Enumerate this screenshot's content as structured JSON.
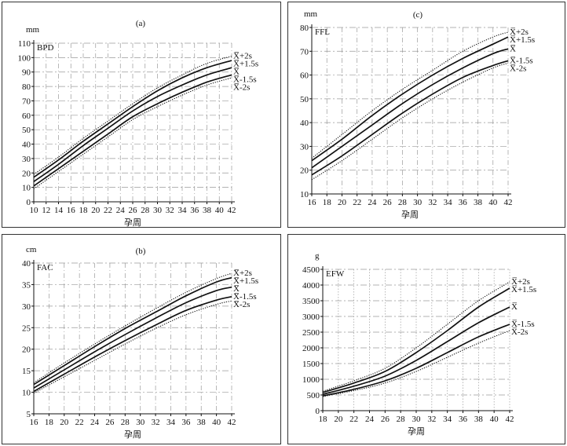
{
  "chart_data": [
    {
      "id": "a",
      "type": "line",
      "title": "(a)",
      "unit": "mm",
      "measure": "BPD",
      "xlabel": "孕周",
      "xlim": [
        10,
        42
      ],
      "ylim": [
        0,
        110
      ],
      "x_ticks": [
        10,
        12,
        14,
        16,
        18,
        20,
        22,
        24,
        26,
        28,
        30,
        32,
        34,
        36,
        38,
        40,
        42
      ],
      "y_ticks": [
        0,
        10,
        20,
        30,
        40,
        50,
        60,
        70,
        80,
        90,
        100,
        110
      ],
      "series": [
        {
          "name": "X̅+2s",
          "style": "dotted",
          "x": [
            10,
            14,
            18,
            22,
            26,
            30,
            34,
            38,
            42
          ],
          "y": [
            19,
            31,
            44,
            56,
            68,
            79,
            88,
            96,
            101
          ]
        },
        {
          "name": "X̅+1.5s",
          "style": "solid",
          "x": [
            10,
            14,
            18,
            22,
            26,
            30,
            34,
            38,
            42
          ],
          "y": [
            17,
            29,
            42,
            54,
            66,
            77,
            86,
            93,
            98
          ]
        },
        {
          "name": "X̅",
          "style": "solid",
          "x": [
            10,
            14,
            18,
            22,
            26,
            30,
            34,
            38,
            42
          ],
          "y": [
            14,
            26,
            39,
            51,
            63,
            73,
            81,
            88,
            93
          ]
        },
        {
          "name": "X̅-1.5s",
          "style": "solid",
          "x": [
            10,
            14,
            18,
            22,
            26,
            30,
            34,
            38,
            42
          ],
          "y": [
            11,
            23,
            35,
            47,
            59,
            68,
            76,
            83,
            88
          ]
        },
        {
          "name": "X̅-2s",
          "style": "dotted",
          "x": [
            10,
            14,
            18,
            22,
            26,
            30,
            34,
            38,
            42
          ],
          "y": [
            9,
            21,
            33,
            45,
            57,
            66,
            74,
            81,
            86
          ]
        }
      ]
    },
    {
      "id": "c",
      "type": "line",
      "title": "(c)",
      "unit": "mm",
      "measure": "FFL",
      "xlabel": "孕周",
      "xlim": [
        16,
        42
      ],
      "ylim": [
        10,
        80
      ],
      "x_ticks": [
        16,
        18,
        20,
        22,
        24,
        26,
        28,
        30,
        32,
        34,
        36,
        38,
        40,
        42
      ],
      "y_ticks": [
        10,
        20,
        30,
        40,
        50,
        60,
        70,
        80
      ],
      "series": [
        {
          "name": "X̅+2s",
          "style": "dotted",
          "x": [
            16,
            20,
            24,
            28,
            32,
            36,
            40,
            42
          ],
          "y": [
            25,
            35,
            45,
            54,
            62,
            70,
            76,
            78
          ]
        },
        {
          "name": "X̅+1.5s",
          "style": "solid",
          "x": [
            16,
            20,
            24,
            28,
            32,
            36,
            40,
            42
          ],
          "y": [
            24,
            33,
            43,
            52,
            60,
            67,
            73,
            76
          ]
        },
        {
          "name": "X̅",
          "style": "solid",
          "x": [
            16,
            20,
            24,
            28,
            32,
            36,
            40,
            42
          ],
          "y": [
            21,
            30,
            39,
            48,
            56,
            63,
            69,
            71
          ]
        },
        {
          "name": "X̅-1.5s",
          "style": "solid",
          "x": [
            16,
            20,
            24,
            28,
            32,
            36,
            40,
            42
          ],
          "y": [
            18,
            26,
            35,
            44,
            52,
            59,
            64,
            66
          ]
        },
        {
          "name": "X̅-2s",
          "style": "dotted",
          "x": [
            16,
            20,
            24,
            28,
            32,
            36,
            40,
            42
          ],
          "y": [
            16,
            24,
            33,
            42,
            50,
            57,
            63,
            65
          ]
        }
      ]
    },
    {
      "id": "b",
      "type": "line",
      "title": "(b)",
      "unit": "cm",
      "measure": "FAC",
      "xlabel": "孕周",
      "xlim": [
        16,
        42
      ],
      "ylim": [
        5,
        40
      ],
      "x_ticks": [
        16,
        18,
        20,
        22,
        24,
        26,
        28,
        30,
        32,
        34,
        36,
        38,
        40,
        42
      ],
      "y_ticks": [
        5,
        10,
        15,
        20,
        25,
        30,
        35,
        40
      ],
      "series": [
        {
          "name": "X̅+2s",
          "style": "dotted",
          "x": [
            16,
            20,
            24,
            28,
            32,
            36,
            40,
            42
          ],
          "y": [
            12.2,
            16.8,
            21.2,
            25.4,
            29.4,
            33.2,
            36.4,
            37.6
          ]
        },
        {
          "name": "X̅+1.5s",
          "style": "solid",
          "x": [
            16,
            20,
            24,
            28,
            32,
            36,
            40,
            42
          ],
          "y": [
            11.8,
            16.2,
            20.6,
            24.8,
            28.6,
            32.4,
            35.6,
            36.6
          ]
        },
        {
          "name": "X̅",
          "style": "solid",
          "x": [
            16,
            20,
            24,
            28,
            32,
            36,
            40,
            42
          ],
          "y": [
            11,
            15.2,
            19.4,
            23.4,
            27.2,
            30.8,
            33.6,
            34.4
          ]
        },
        {
          "name": "X̅-1.5s",
          "style": "solid",
          "x": [
            16,
            20,
            24,
            28,
            32,
            36,
            40,
            42
          ],
          "y": [
            10.2,
            14.2,
            18.2,
            22,
            25.6,
            29,
            31.4,
            32.2
          ]
        },
        {
          "name": "X̅-2s",
          "style": "dotted",
          "x": [
            16,
            20,
            24,
            28,
            32,
            36,
            40,
            42
          ],
          "y": [
            9.8,
            13.6,
            17.4,
            21.2,
            24.8,
            28,
            30.4,
            31.2
          ]
        }
      ]
    },
    {
      "id": "d",
      "type": "line",
      "unit": "g",
      "measure": "EFW",
      "xlabel": "孕周",
      "xlim": [
        18,
        42
      ],
      "ylim": [
        0,
        4500
      ],
      "x_ticks": [
        18,
        20,
        22,
        24,
        26,
        28,
        30,
        32,
        34,
        36,
        38,
        40,
        42
      ],
      "y_ticks": [
        0,
        500,
        1000,
        1500,
        2000,
        2500,
        3000,
        3500,
        4000,
        4500
      ],
      "series": [
        {
          "name": "X̅+2s",
          "style": "dotted",
          "x": [
            18,
            22,
            26,
            30,
            34,
            38,
            42
          ],
          "y": [
            620,
            950,
            1350,
            2000,
            2750,
            3500,
            4100
          ]
        },
        {
          "name": "X̅+1.5s",
          "style": "solid",
          "x": [
            18,
            22,
            26,
            30,
            34,
            38,
            42
          ],
          "y": [
            580,
            880,
            1250,
            1850,
            2550,
            3300,
            3900
          ]
        },
        {
          "name": "X̅",
          "style": "solid",
          "x": [
            18,
            22,
            26,
            30,
            34,
            38,
            42
          ],
          "y": [
            520,
            780,
            1100,
            1600,
            2200,
            2800,
            3300
          ]
        },
        {
          "name": "X̅-1.5s",
          "style": "solid",
          "x": [
            18,
            22,
            26,
            30,
            34,
            38,
            42
          ],
          "y": [
            470,
            680,
            950,
            1350,
            1850,
            2350,
            2750
          ]
        },
        {
          "name": "X̅-2s",
          "style": "dotted",
          "x": [
            18,
            22,
            26,
            30,
            34,
            38,
            42
          ],
          "y": [
            450,
            640,
            880,
            1250,
            1700,
            2150,
            2550
          ]
        }
      ]
    }
  ]
}
